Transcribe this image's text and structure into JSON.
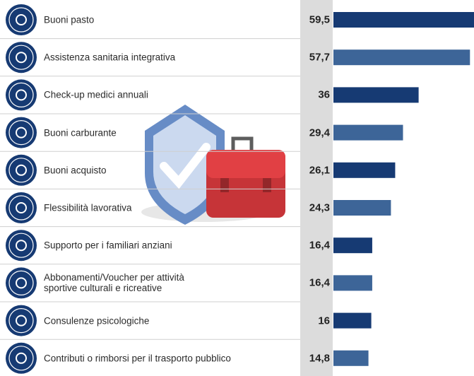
{
  "chart_data": {
    "type": "bar",
    "categories": [
      "Buoni pasto",
      "Assistenza sanitaria integrativa",
      "Check-up medici annuali",
      "Buoni carburante",
      "Buoni acquisto",
      "Flessibilità lavorativa",
      "Supporto per i familiari anziani",
      "Abbonamenti/Voucher per attività\nsportive culturali e ricreative",
      "Consulenze psicologiche",
      "Contributi o rimborsi per il trasporto pubblico"
    ],
    "values": [
      59.5,
      57.7,
      36,
      29.4,
      26.1,
      24.3,
      16.4,
      16.4,
      16,
      14.8
    ],
    "value_labels": [
      "59,5",
      "57,7",
      "36",
      "29,4",
      "26,1",
      "24,3",
      "16,4",
      "16,4",
      "16",
      "14,8"
    ],
    "colors": [
      "#163a73",
      "#3d6598",
      "#163a73",
      "#3d6598",
      "#163a73",
      "#3d6598",
      "#163a73",
      "#3d6598",
      "#163a73",
      "#3d6598"
    ]
  }
}
